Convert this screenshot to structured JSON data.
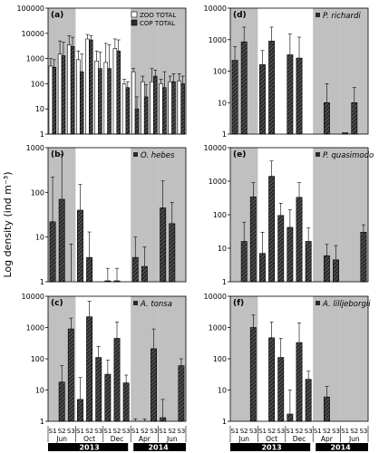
{
  "figure": {
    "ylabel": "Log density (ind m⁻³)",
    "stations": [
      "S1",
      "S2",
      "S3"
    ],
    "months": [
      "Jun",
      "Oct",
      "Dec",
      "Apr",
      "Jun"
    ],
    "years": [
      "2013",
      "2014"
    ],
    "colors": {
      "shade": "#c0c0c0",
      "bar_dark": "#2b2b2b",
      "bar_light": "#ffffff",
      "axis": "#000000",
      "year_bar": "#000000",
      "year_text": "#ffffff"
    }
  },
  "chart_data": [
    {
      "type": "bar",
      "panel": "(a)",
      "title": "",
      "ylim": [
        1,
        100000
      ],
      "yscale": "log",
      "yticks": [
        "1",
        "10",
        "100",
        "1000",
        "10000",
        "100000"
      ],
      "legend_placement": "top-right",
      "series": [
        {
          "name": "ZOO TOTAL",
          "values": [
            500,
            1500,
            3500,
            900,
            6000,
            800,
            700,
            2500,
            100,
            300,
            120,
            120,
            100,
            120,
            130
          ]
        },
        {
          "name": "COP TOTAL",
          "values": [
            450,
            1300,
            3000,
            300,
            5500,
            400,
            400,
            2000,
            70,
            10,
            30,
            200,
            70,
            120,
            100
          ]
        }
      ],
      "errors_upper": [
        [
          1000,
          5000,
          8000,
          2000,
          9000,
          2000,
          4000,
          6000,
          150,
          400,
          200,
          400,
          150,
          200,
          250
        ],
        [
          900,
          4500,
          7000,
          1500,
          8000,
          1800,
          3500,
          5500,
          120,
          30,
          90,
          350,
          300,
          250,
          200
        ]
      ]
    },
    {
      "type": "bar",
      "panel": "(b)",
      "title": "O. hebes",
      "ylim": [
        1,
        1000
      ],
      "yscale": "log",
      "yticks": [
        "1",
        "10",
        "100",
        "1000"
      ],
      "series": [
        {
          "name": "O. hebes",
          "values": [
            22,
            70,
            1,
            40,
            3.5,
            1,
            1.05,
            1.05,
            1,
            3.5,
            2.2,
            1,
            45,
            20,
            1
          ]
        }
      ],
      "errors_upper": [
        [
          220,
          700,
          7,
          150,
          13,
          1,
          2,
          2,
          1,
          10,
          6,
          1,
          180,
          60,
          1
        ]
      ]
    },
    {
      "type": "bar",
      "panel": "(c)",
      "title": "A. tonsa",
      "ylim": [
        1,
        10000
      ],
      "yscale": "log",
      "yticks": [
        "1",
        "10",
        "100",
        "1000",
        "10000"
      ],
      "series": [
        {
          "name": "A. tonsa",
          "values": [
            1,
            18,
            900,
            5,
            2200,
            110,
            32,
            450,
            17,
            1,
            1,
            210,
            1.3,
            1,
            60
          ]
        }
      ],
      "errors_upper": [
        [
          1,
          60,
          2000,
          25,
          7000,
          250,
          90,
          1500,
          30,
          1.2,
          1.2,
          900,
          5,
          1,
          100
        ]
      ]
    },
    {
      "type": "bar",
      "panel": "(d)",
      "title": "P. richardi",
      "ylim": [
        1,
        10000
      ],
      "yscale": "log",
      "yticks": [
        "1",
        "10",
        "100",
        "1000",
        "10000"
      ],
      "series": [
        {
          "name": "P. richardi",
          "values": [
            220,
            850,
            1,
            160,
            900,
            1,
            330,
            260,
            1,
            1,
            10,
            1,
            1.1,
            10,
            1
          ]
        }
      ],
      "errors_upper": [
        [
          600,
          2500,
          1,
          450,
          2500,
          1,
          1500,
          1200,
          1,
          1,
          40,
          1,
          1.1,
          30,
          1
        ]
      ]
    },
    {
      "type": "bar",
      "panel": "(e)",
      "title": "P. quasimodo",
      "ylim": [
        1,
        10000
      ],
      "yscale": "log",
      "yticks": [
        "1",
        "10",
        "100",
        "1000",
        "10000"
      ],
      "series": [
        {
          "name": "P. quasimodo",
          "values": [
            1,
            16,
            340,
            7,
            1400,
            95,
            42,
            330,
            16,
            1,
            6,
            4.5,
            1,
            1,
            30
          ]
        }
      ],
      "errors_upper": [
        [
          1,
          60,
          900,
          30,
          4000,
          220,
          140,
          900,
          40,
          1,
          13,
          12,
          1,
          1,
          50
        ]
      ]
    },
    {
      "type": "bar",
      "panel": "(f)",
      "title": "A. lilljeborgii",
      "ylim": [
        1,
        10000
      ],
      "yscale": "log",
      "yticks": [
        "1",
        "10",
        "100",
        "1000",
        "10000"
      ],
      "series": [
        {
          "name": "A. lilljeborgii",
          "values": [
            1,
            1,
            1000,
            1,
            470,
            110,
            1.7,
            330,
            22,
            1,
            6,
            1,
            1,
            1,
            1
          ]
        }
      ],
      "errors_upper": [
        [
          1,
          1,
          2500,
          1,
          1500,
          450,
          10,
          1400,
          40,
          1,
          13,
          1,
          1,
          1,
          1
        ]
      ]
    }
  ]
}
